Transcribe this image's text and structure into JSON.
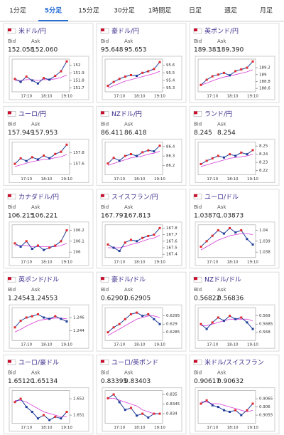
{
  "tabs": [
    "1分足",
    "5分足",
    "15分足",
    "30分足",
    "1時間足",
    "日足",
    "週足",
    "月足"
  ],
  "active_tab": 1,
  "cards": [
    {
      "title": "米ドル/円",
      "bid_label": "Bid",
      "ask_label": "Ask",
      "bid": "152.058",
      "ask": "152.060",
      "chart": {
        "xlabels": [
          "17:10",
          "18:10",
          "19:10"
        ],
        "ylim": [
          151.65,
          152.08
        ],
        "yticks": [
          152,
          151.9,
          151.8,
          151.7
        ],
        "close": [
          151.82,
          151.78,
          151.85,
          151.8,
          151.76,
          151.83,
          151.81,
          151.86,
          151.92,
          152.05
        ],
        "ma": [
          151.8,
          151.8,
          151.81,
          151.81,
          151.8,
          151.81,
          151.81,
          151.82,
          151.84,
          151.87
        ]
      }
    },
    {
      "title": "豪ドル/円",
      "bid_label": "Bid",
      "ask_label": "Ask",
      "bid": "95.648",
      "ask": "95.653",
      "chart": {
        "xlabels": [
          "17:10",
          "18:10",
          "19:10"
        ],
        "ylim": [
          95.25,
          95.68
        ],
        "yticks": [
          95.6,
          95.5,
          95.4,
          95.3
        ],
        "close": [
          95.33,
          95.38,
          95.42,
          95.45,
          95.47,
          95.46,
          95.5,
          95.52,
          95.55,
          95.64
        ],
        "ma": [
          95.3,
          95.33,
          95.36,
          95.39,
          95.41,
          95.43,
          95.45,
          95.47,
          95.49,
          95.52
        ]
      }
    },
    {
      "title": "英ポンド/円",
      "bid_label": "Bid",
      "ask_label": "Ask",
      "bid": "189.383",
      "ask": "189.390",
      "chart": {
        "xlabels": [
          "17:10",
          "18:10",
          "19:10"
        ],
        "ylim": [
          188.5,
          189.45
        ],
        "yticks": [
          189.2,
          189,
          188.8,
          188.6
        ],
        "close": [
          188.7,
          188.85,
          188.95,
          189.0,
          189.05,
          188.98,
          189.1,
          189.15,
          189.2,
          189.38
        ],
        "ma": [
          188.7,
          188.75,
          188.82,
          188.88,
          188.93,
          188.96,
          189.0,
          189.04,
          189.08,
          189.14
        ]
      }
    },
    {
      "title": "ユーロ/円",
      "bid_label": "Bid",
      "ask_label": "Ask",
      "bid": "157.949",
      "ask": "157.953",
      "chart": {
        "xlabels": [
          "17:10",
          "18:10",
          "19:10"
        ],
        "ylim": [
          157.4,
          158.0
        ],
        "yticks": [
          157.8,
          157.6
        ],
        "close": [
          157.6,
          157.7,
          157.65,
          157.72,
          157.68,
          157.75,
          157.7,
          157.78,
          157.82,
          157.95
        ],
        "ma": [
          157.55,
          157.58,
          157.61,
          157.64,
          157.66,
          157.68,
          157.69,
          157.71,
          157.73,
          157.77
        ]
      }
    },
    {
      "title": "NZドル/円",
      "bid_label": "Bid",
      "ask_label": "Ask",
      "bid": "86.411",
      "ask": "86.418",
      "chart": {
        "xlabels": [
          "17:10",
          "18:10",
          "19:10"
        ],
        "ylim": [
          86.1,
          86.45
        ],
        "yticks": [
          86.4,
          86.3,
          86.2
        ],
        "close": [
          86.22,
          86.28,
          86.25,
          86.3,
          86.32,
          86.3,
          86.34,
          86.36,
          86.35,
          86.41
        ],
        "ma": [
          86.2,
          86.22,
          86.24,
          86.26,
          86.28,
          86.29,
          86.3,
          86.32,
          86.33,
          86.35
        ]
      }
    },
    {
      "title": "ランド/円",
      "bid_label": "Bid",
      "ask_label": "Ask",
      "bid": "8.245",
      "ask": "8.254",
      "chart": {
        "xlabels": [
          "17:10",
          "18:10",
          "19:10"
        ],
        "ylim": [
          8.215,
          8.255
        ],
        "yticks": [
          8.25,
          8.24,
          8.23,
          8.22
        ],
        "close": [
          8.228,
          8.232,
          8.235,
          8.238,
          8.236,
          8.24,
          8.238,
          8.242,
          8.24,
          8.245
        ],
        "ma": [
          8.225,
          8.227,
          8.229,
          8.231,
          8.233,
          8.235,
          8.236,
          8.237,
          8.238,
          8.24
        ]
      }
    },
    {
      "title": "カナダドル/円",
      "bid_label": "Bid",
      "ask_label": "Ask",
      "bid": "106.215",
      "ask": "106.221",
      "chart": {
        "xlabels": [
          "17:10",
          "18:10",
          "19:10"
        ],
        "ylim": [
          105.95,
          106.25
        ],
        "yticks": [
          106.2,
          106.1,
          106
        ],
        "close": [
          106.08,
          106.05,
          106.1,
          106.03,
          106.06,
          106.02,
          106.04,
          106.06,
          106.1,
          106.2
        ],
        "ma": [
          106.06,
          106.06,
          106.06,
          106.05,
          106.05,
          106.05,
          106.05,
          106.05,
          106.06,
          106.08
        ]
      }
    },
    {
      "title": "スイスフラン/円",
      "bid_label": "Bid",
      "ask_label": "Ask",
      "bid": "167.797",
      "ask": "167.813",
      "chart": {
        "xlabels": [
          "17:10",
          "18:10",
          "19:10"
        ],
        "ylim": [
          167.35,
          167.85
        ],
        "yticks": [
          167.8,
          167.7,
          167.6,
          167.5,
          167.4
        ],
        "close": [
          167.55,
          167.5,
          167.45,
          167.58,
          167.62,
          167.6,
          167.65,
          167.68,
          167.7,
          167.8
        ],
        "ma": [
          167.5,
          167.5,
          167.5,
          167.52,
          167.55,
          167.57,
          167.6,
          167.63,
          167.65,
          167.69
        ]
      }
    },
    {
      "title": "ユーロ/ドル",
      "bid_label": "Bid",
      "ask_label": "Ask",
      "bid": "1.03870",
      "ask": "1.03873",
      "chart": {
        "xlabels": [
          "17:10",
          "18:10",
          "19:10"
        ],
        "ylim": [
          1.0375,
          1.0405
        ],
        "yticks": [
          1.04,
          1.039,
          1.038
        ],
        "close": [
          1.0385,
          1.039,
          1.0395,
          1.04,
          1.0397,
          1.0402,
          1.0398,
          1.04,
          1.0392,
          1.0387
        ],
        "ma": [
          1.0382,
          1.0385,
          1.0388,
          1.0391,
          1.0393,
          1.0395,
          1.0396,
          1.0397,
          1.0397,
          1.0396
        ]
      }
    },
    {
      "title": "英ポンド/ドル",
      "bid_label": "Bid",
      "ask_label": "Ask",
      "bid": "1.24543",
      "ask": "1.24553",
      "chart": {
        "xlabels": [
          "17:10",
          "18:10",
          "19:10"
        ],
        "ylim": [
          1.2425,
          1.2475
        ],
        "yticks": [
          1.246,
          1.244
        ],
        "close": [
          1.2445,
          1.2455,
          1.246,
          1.2462,
          1.2465,
          1.246,
          1.2458,
          1.2462,
          1.2458,
          1.2454
        ],
        "ma": [
          1.2438,
          1.2442,
          1.2447,
          1.2451,
          1.2455,
          1.2457,
          1.2458,
          1.2459,
          1.2459,
          1.2458
        ]
      }
    },
    {
      "title": "豪ドル/ドル",
      "bid_label": "Bid",
      "ask_label": "Ask",
      "bid": "0.62901",
      "ask": "0.62905",
      "chart": {
        "xlabels": [
          "17:10",
          "18:10",
          "19:10"
        ],
        "ylim": [
          0.628,
          0.63
        ],
        "yticks": [
          0.6295,
          0.629,
          0.6285
        ],
        "close": [
          0.6285,
          0.6288,
          0.629,
          0.6293,
          0.6296,
          0.6297,
          0.6295,
          0.6296,
          0.6293,
          0.629
        ],
        "ma": [
          0.6283,
          0.6285,
          0.6287,
          0.6289,
          0.6291,
          0.6293,
          0.6294,
          0.6295,
          0.6295,
          0.6294
        ]
      }
    },
    {
      "title": "NZドル/ドル",
      "bid_label": "Bid",
      "ask_label": "Ask",
      "bid": "0.56822",
      "ask": "0.56836",
      "chart": {
        "xlabels": [
          "17:10",
          "18:10",
          "19:10"
        ],
        "ylim": [
          0.5675,
          0.5695
        ],
        "yticks": [
          0.569,
          0.5685,
          0.568
        ],
        "close": [
          0.5685,
          0.5682,
          0.5686,
          0.5689,
          0.5687,
          0.569,
          0.5688,
          0.5689,
          0.5686,
          0.5682
        ],
        "ma": [
          0.5684,
          0.5684,
          0.5685,
          0.5686,
          0.5687,
          0.5688,
          0.5688,
          0.5688,
          0.5688,
          0.5687
        ]
      }
    },
    {
      "title": "ユーロ/豪ドル",
      "bid_label": "Bid",
      "ask_label": "Ask",
      "bid": "1.65120",
      "ask": "1.65134",
      "chart": {
        "xlabels": [
          "17:10",
          "18:10",
          "19:10"
        ],
        "ylim": [
          1.6505,
          1.6525
        ],
        "yticks": [
          1.652,
          1.651
        ],
        "close": [
          1.6518,
          1.652,
          1.6515,
          1.6512,
          1.6508,
          1.651,
          1.6507,
          1.6509,
          1.6508,
          1.6512
        ],
        "ma": [
          1.6519,
          1.6519,
          1.6518,
          1.6516,
          1.6514,
          1.6512,
          1.6511,
          1.651,
          1.6509,
          1.6509
        ]
      }
    },
    {
      "title": "ユーロ/英ポンド",
      "bid_label": "Bid",
      "ask_label": "Ask",
      "bid": "0.83395",
      "ask": "0.83403",
      "chart": {
        "xlabels": [
          "17:10",
          "18:10",
          "19:10"
        ],
        "ylim": [
          0.8335,
          0.8352
        ],
        "yticks": [
          0.835,
          0.8345,
          0.834
        ],
        "close": [
          0.8348,
          0.835,
          0.8346,
          0.8342,
          0.8343,
          0.8339,
          0.834,
          0.8338,
          0.834,
          0.834
        ],
        "ma": [
          0.8348,
          0.8348,
          0.8347,
          0.8346,
          0.8345,
          0.8344,
          0.8342,
          0.8341,
          0.834,
          0.834
        ]
      }
    },
    {
      "title": "米ドル/スイスフラン",
      "bid_label": "Bid",
      "ask_label": "Ask",
      "bid": "0.90617",
      "ask": "0.90632",
      "chart": {
        "xlabels": [
          "17:10",
          "18:10",
          "19:10"
        ],
        "ylim": [
          0.905,
          0.907
        ],
        "yticks": [
          0.9065,
          0.906,
          0.9055
        ],
        "close": [
          0.9062,
          0.9064,
          0.9061,
          0.906,
          0.9058,
          0.9057,
          0.9058,
          0.9055,
          0.9058,
          0.9062
        ],
        "ma": [
          0.9063,
          0.9063,
          0.9062,
          0.9062,
          0.9061,
          0.906,
          0.9059,
          0.9058,
          0.9057,
          0.9058
        ]
      }
    }
  ]
}
